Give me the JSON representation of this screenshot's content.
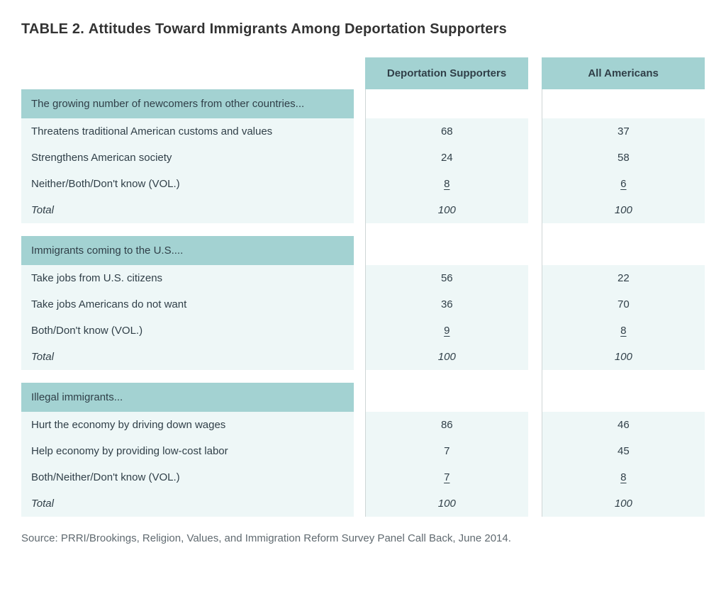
{
  "type": "table",
  "title_prefix": "TABLE 2.",
  "title_text": "Attitudes Toward Immigrants Among Deportation Supporters",
  "columns": [
    "Deportation Supporters",
    "All Americans"
  ],
  "header_bg": "#a3d2d2",
  "body_bg": "#eef7f7",
  "border_color": "#cfd6d6",
  "title_fontsize": 20,
  "cell_fontsize": 15,
  "sections": [
    {
      "heading": "The growing number of newcomers from other countries...",
      "rows": [
        {
          "label": "Threatens traditional American customs and values",
          "values": [
            "68",
            "37"
          ],
          "underline": false,
          "italic": false
        },
        {
          "label": "Strengthens American society",
          "values": [
            "24",
            "58"
          ],
          "underline": false,
          "italic": false
        },
        {
          "label": "Neither/Both/Don't know (VOL.)",
          "values": [
            "8",
            "6"
          ],
          "underline": true,
          "italic": false
        },
        {
          "label": "Total",
          "values": [
            "100",
            "100"
          ],
          "underline": false,
          "italic": true
        }
      ]
    },
    {
      "heading": "Immigrants coming to the U.S....",
      "rows": [
        {
          "label": "Take jobs from U.S. citizens",
          "values": [
            "56",
            "22"
          ],
          "underline": false,
          "italic": false
        },
        {
          "label": "Take jobs Americans do not want",
          "values": [
            "36",
            "70"
          ],
          "underline": false,
          "italic": false
        },
        {
          "label": "Both/Don't know (VOL.)",
          "values": [
            "9",
            "8"
          ],
          "underline": true,
          "italic": false
        },
        {
          "label": "Total",
          "values": [
            "100",
            "100"
          ],
          "underline": false,
          "italic": true
        }
      ]
    },
    {
      "heading": "Illegal immigrants...",
      "rows": [
        {
          "label": "Hurt the economy by driving down wages",
          "values": [
            "86",
            "46"
          ],
          "underline": false,
          "italic": false
        },
        {
          "label": "Help economy by providing low-cost labor",
          "values": [
            "7",
            "45"
          ],
          "underline": false,
          "italic": false
        },
        {
          "label": "Both/Neither/Don't know (VOL.)",
          "values": [
            "7",
            "8"
          ],
          "underline": true,
          "italic": false
        },
        {
          "label": "Total",
          "values": [
            "100",
            "100"
          ],
          "underline": false,
          "italic": true
        }
      ]
    }
  ],
  "source": "Source: PRRI/Brookings, Religion, Values, and Immigration Reform Survey Panel Call Back, June 2014."
}
